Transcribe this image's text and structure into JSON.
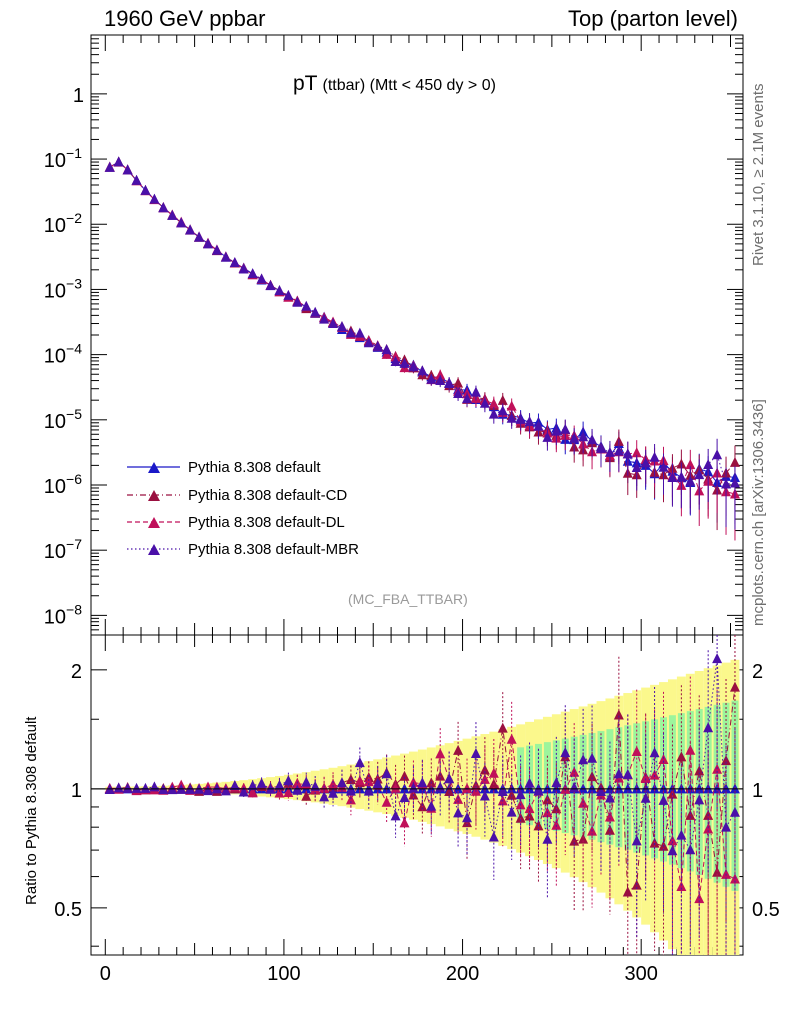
{
  "header": {
    "left": "1960 GeV ppbar",
    "right": "Top (parton level)"
  },
  "side_labels": {
    "rivet": "Rivet 3.1.10, ≥ 2.1M events",
    "mcplots": "mcplots.cern.ch [arXiv:1306.3436]"
  },
  "analysis_tag": "(MC_FBA_TTBAR)",
  "colors": {
    "default": "#1a18c8",
    "cd": "#9a1040",
    "dl": "#c0105a",
    "mbr": "#4a10a8",
    "band_yellow": "#fbf88c",
    "band_green": "#9cf59c"
  },
  "chart_data": [
    {
      "type": "scatter",
      "title_main": "pT",
      "title_sub": "(ttbar) (Mtt < 450 dy > 0)",
      "ylog": true,
      "xlim": [
        -8,
        357
      ],
      "ylim": [
        5e-09,
        8
      ],
      "y_ticks": [
        "10^-8",
        "10^-7",
        "10^-6",
        "10^-5",
        "10^-4",
        "10^-3",
        "10^-2",
        "10^-1",
        "1"
      ],
      "legend_position": "bottom-left",
      "series": [
        {
          "name": "Pythia 8.308 default",
          "style": "solid",
          "color_key": "default"
        },
        {
          "name": "Pythia 8.308 default-CD",
          "style": "dashdot",
          "color_key": "cd"
        },
        {
          "name": "Pythia 8.308 default-DL",
          "style": "dashed",
          "color_key": "dl"
        },
        {
          "name": "Pythia 8.308 default-MBR",
          "style": "dotted",
          "color_key": "mbr"
        }
      ],
      "reference_curve": {
        "x": [
          2.5,
          7.5,
          12.5,
          17.5,
          22.5,
          27.5,
          32.5,
          40,
          50,
          60,
          70,
          80,
          100,
          120,
          140,
          160,
          180,
          200,
          220,
          240,
          260,
          280,
          300,
          320,
          340,
          355
        ],
        "y": [
          0.075,
          0.09,
          0.068,
          0.047,
          0.033,
          0.024,
          0.018,
          0.012,
          0.0072,
          0.0045,
          0.0028,
          0.0019,
          0.00085,
          0.0004,
          0.0002,
          0.0001,
          5e-05,
          2.7e-05,
          1.5e-05,
          8.5e-06,
          5.5e-06,
          3.5e-06,
          2.4e-06,
          1.8e-06,
          1.4e-06,
          1.2e-06
        ]
      }
    },
    {
      "type": "scatter",
      "ylabel": "Ratio to Pythia 8.308 default",
      "xlabel": "",
      "xlim": [
        -8,
        357
      ],
      "ylim": [
        0.38,
        2.45
      ],
      "ylog": true,
      "y_ticks": [
        0.5,
        1,
        2
      ],
      "x_ticks": [
        0,
        100,
        200,
        300
      ],
      "reference_line": 1
    }
  ]
}
